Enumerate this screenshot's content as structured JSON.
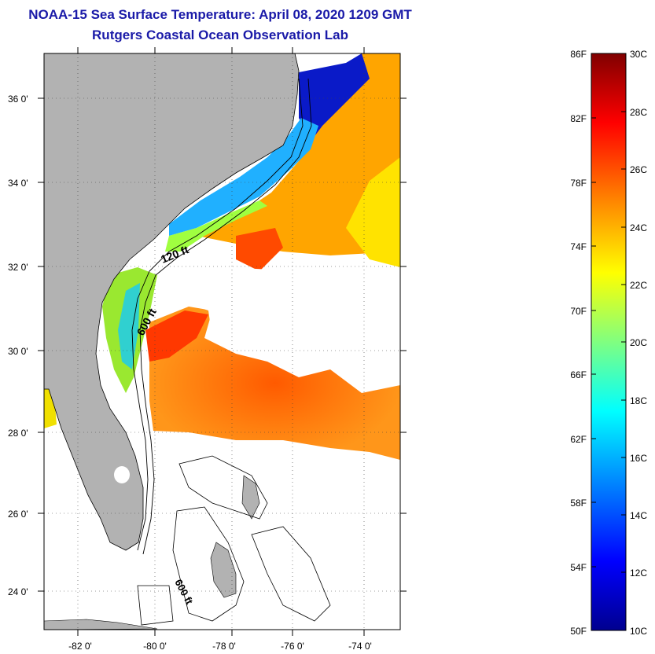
{
  "header": {
    "title": "NOAA-15 Sea Surface Temperature:  April 08, 2020 1209 GMT",
    "subtitle": "Rutgers Coastal Ocean Observation Lab"
  },
  "map": {
    "lat_labels": [
      "36 0'",
      "34 0'",
      "32 0'",
      "30 0'",
      "28 0'",
      "26 0'",
      "24 0'"
    ],
    "lon_labels": [
      "-82 0'",
      "-80 0'",
      "-78 0'",
      "-76 0'",
      "-74 0'"
    ],
    "contour_labels": [
      "120 ft",
      "600 ft",
      "600 ft"
    ]
  },
  "colorbar": {
    "f_labels": [
      "86F",
      "82F",
      "78F",
      "74F",
      "70F",
      "66F",
      "62F",
      "58F",
      "54F",
      "50F"
    ],
    "c_labels": [
      "30C",
      "28C",
      "26C",
      "24C",
      "22C",
      "20C",
      "18C",
      "16C",
      "14C",
      "12C",
      "10C"
    ],
    "colors": [
      "#00008f",
      "#0000ff",
      "#0080ff",
      "#00ffff",
      "#80ff80",
      "#ffff00",
      "#ff8000",
      "#ff0000",
      "#800000"
    ]
  }
}
